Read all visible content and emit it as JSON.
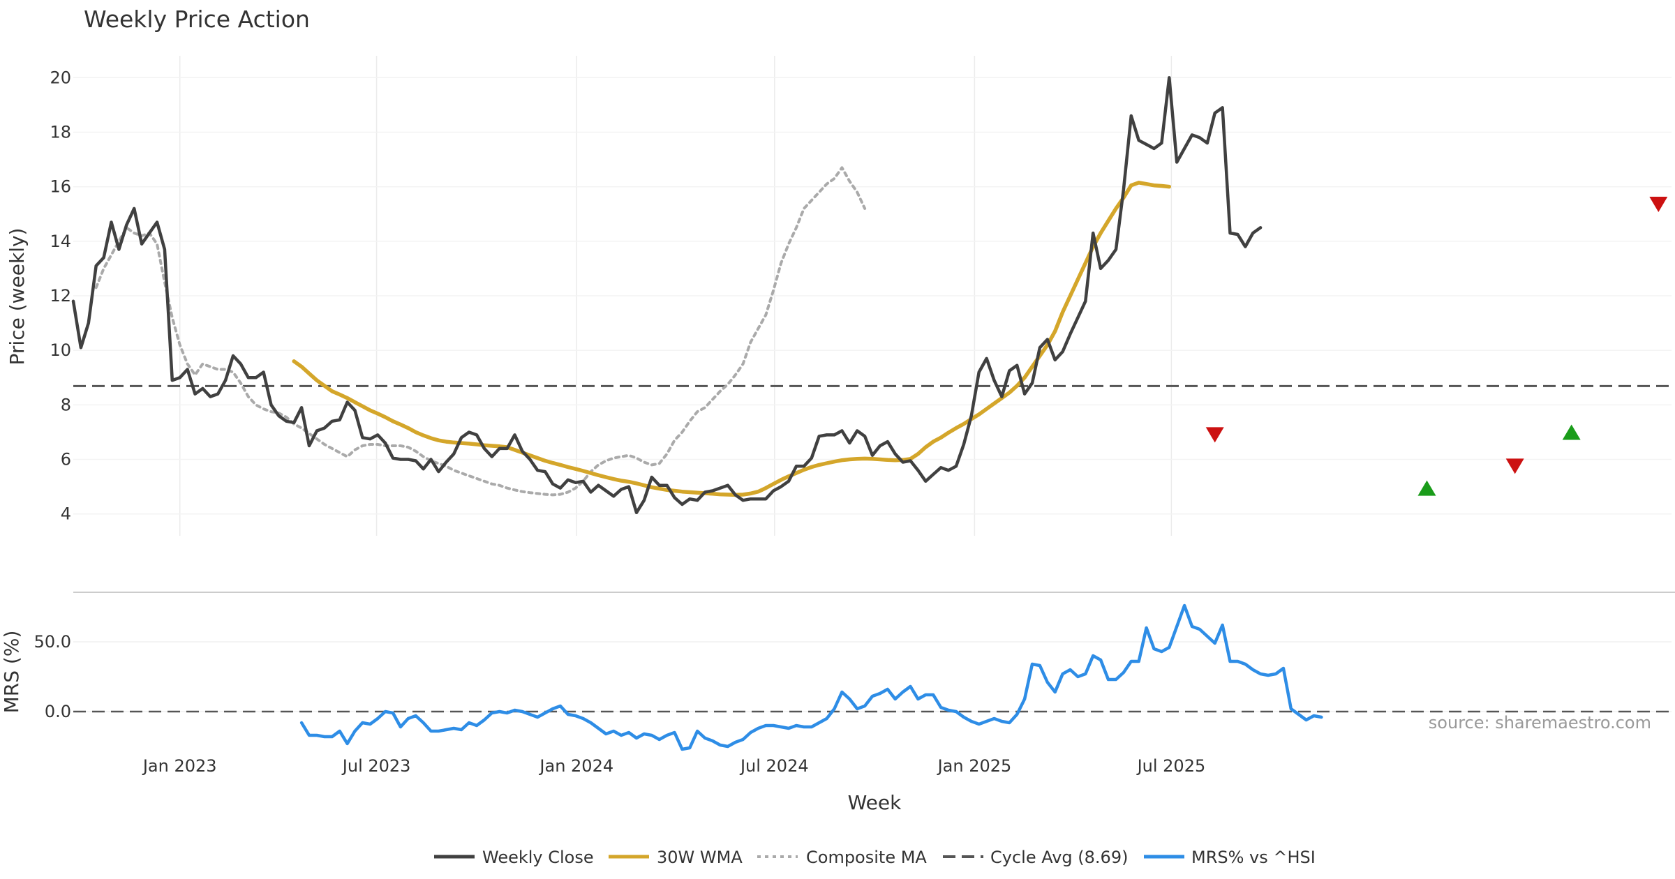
{
  "chart_data": {
    "type": "line",
    "title": "Weekly Price Action",
    "xlabel": "Week",
    "x_ticks": [
      "Jan 2023",
      "Jul 2023",
      "Jan 2024",
      "Jul 2024",
      "Jan 2025",
      "Jul 2025"
    ],
    "x_range_weeks": [
      0,
      1470
    ],
    "price_panel": {
      "ylabel": "Price (weekly)",
      "ylim": [
        3.2,
        20.8
      ],
      "y_ticks": [
        "4",
        "6",
        "8",
        "10",
        "12",
        "14",
        "16",
        "18",
        "20"
      ],
      "cycle_avg": 8.69,
      "series": [
        {
          "name": "Weekly Close",
          "color": "#404040",
          "start": 0,
          "values": [
            11.8,
            10.1,
            11.0,
            13.1,
            13.4,
            14.7,
            13.7,
            14.6,
            15.2,
            13.9,
            14.3,
            14.7,
            13.7,
            8.9,
            9.0,
            9.3,
            8.4,
            8.6,
            8.3,
            8.4,
            8.9,
            9.8,
            9.5,
            9.0,
            9.0,
            9.2,
            8.0,
            7.6,
            7.4,
            7.35,
            7.9,
            6.5,
            7.05,
            7.15,
            7.4,
            7.45,
            8.1,
            7.8,
            6.8,
            6.75,
            6.9,
            6.6,
            6.05,
            6.0,
            6.0,
            5.95,
            5.65,
            6.0,
            5.55,
            5.9,
            6.2,
            6.8,
            7.0,
            6.9,
            6.4,
            6.1,
            6.4,
            6.4,
            6.9,
            6.3,
            6.0,
            5.6,
            5.55,
            5.1,
            4.95,
            5.25,
            5.15,
            5.2,
            4.8,
            5.05,
            4.85,
            4.65,
            4.9,
            5.0,
            4.05,
            4.5,
            5.35,
            5.05,
            5.05,
            4.6,
            4.35,
            4.55,
            4.5,
            4.8,
            4.85,
            4.95,
            5.05,
            4.7,
            4.5,
            4.55,
            4.55,
            4.55,
            4.85,
            5.0,
            5.2,
            5.75,
            5.75,
            6.05,
            6.85,
            6.9,
            6.9,
            7.05,
            6.6,
            7.05,
            6.85,
            6.15,
            6.5,
            6.65,
            6.2,
            5.9,
            5.95,
            5.6,
            5.2,
            5.45,
            5.7,
            5.6,
            5.75,
            6.55,
            7.6,
            9.2,
            9.7,
            8.9,
            8.3,
            9.25,
            9.45,
            8.4,
            8.8,
            10.1,
            10.4,
            9.65,
            9.95,
            10.6,
            11.2,
            11.8,
            14.3,
            13.0,
            13.3,
            13.7,
            15.9,
            18.6,
            17.7,
            17.55,
            17.4,
            17.6,
            20.0,
            16.9,
            17.4,
            17.9,
            17.8,
            17.6,
            18.7,
            18.9,
            14.3,
            14.25,
            13.8,
            14.3,
            14.5
          ]
        },
        {
          "name": "30W WMA",
          "color": "#D4A62A",
          "start": 29,
          "values": [
            9.6,
            9.4,
            9.15,
            8.9,
            8.7,
            8.5,
            8.38,
            8.25,
            8.1,
            7.95,
            7.8,
            7.68,
            7.55,
            7.4,
            7.28,
            7.15,
            7.0,
            6.88,
            6.78,
            6.7,
            6.65,
            6.62,
            6.6,
            6.58,
            6.55,
            6.52,
            6.5,
            6.48,
            6.45,
            6.35,
            6.25,
            6.15,
            6.05,
            5.95,
            5.87,
            5.8,
            5.72,
            5.65,
            5.58,
            5.5,
            5.42,
            5.35,
            5.28,
            5.22,
            5.18,
            5.12,
            5.05,
            4.98,
            4.93,
            4.88,
            4.85,
            4.82,
            4.8,
            4.78,
            4.76,
            4.74,
            4.72,
            4.71,
            4.7,
            4.71,
            4.75,
            4.82,
            4.95,
            5.1,
            5.25,
            5.38,
            5.5,
            5.62,
            5.72,
            5.8,
            5.86,
            5.92,
            5.97,
            6.0,
            6.02,
            6.03,
            6.02,
            6.0,
            5.98,
            5.97,
            5.98,
            6.02,
            6.2,
            6.45,
            6.65,
            6.8,
            6.98,
            7.15,
            7.3,
            7.48,
            7.65,
            7.85,
            8.05,
            8.25,
            8.45,
            8.7,
            9.0,
            9.4,
            9.8,
            10.2,
            10.7,
            11.4,
            12.0,
            12.6,
            13.2,
            13.8,
            14.3,
            14.75,
            15.2,
            15.6,
            16.05,
            16.15,
            16.1,
            16.05,
            16.03,
            16.0
          ]
        },
        {
          "name": "Composite MA",
          "color": "#AAAAAA",
          "start": 3,
          "values": [
            12.3,
            13.0,
            13.5,
            14.0,
            14.5,
            14.3,
            14.2,
            14.3,
            13.9,
            12.5,
            11.2,
            10.2,
            9.5,
            9.1,
            9.5,
            9.4,
            9.3,
            9.3,
            9.2,
            8.8,
            8.3,
            8.0,
            7.85,
            7.75,
            7.7,
            7.55,
            7.3,
            7.15,
            6.95,
            6.75,
            6.55,
            6.4,
            6.25,
            6.1,
            6.35,
            6.5,
            6.55,
            6.55,
            6.5,
            6.5,
            6.5,
            6.45,
            6.3,
            6.1,
            5.95,
            5.85,
            5.75,
            5.6,
            5.5,
            5.4,
            5.3,
            5.2,
            5.1,
            5.05,
            4.95,
            4.88,
            4.82,
            4.78,
            4.75,
            4.72,
            4.7,
            4.72,
            4.8,
            4.95,
            5.2,
            5.55,
            5.8,
            5.95,
            6.05,
            6.1,
            6.15,
            6.05,
            5.9,
            5.8,
            5.85,
            6.2,
            6.7,
            7.0,
            7.4,
            7.75,
            7.9,
            8.2,
            8.5,
            8.75,
            9.1,
            9.5,
            10.3,
            10.8,
            11.3,
            12.2,
            13.2,
            13.9,
            14.5,
            15.2,
            15.5,
            15.8,
            16.1,
            16.3,
            16.7,
            16.2,
            15.8,
            15.2
          ]
        }
      ],
      "buy_signals": [
        {
          "x": 1245,
          "y": 4.95
        },
        {
          "x": 1378,
          "y": 7.0
        }
      ],
      "sell_signals": [
        {
          "x": 1050,
          "y": 6.9
        },
        {
          "x": 1326,
          "y": 5.75
        },
        {
          "x": 1458,
          "y": 15.35
        }
      ]
    },
    "mrs_panel": {
      "ylabel": "MRS (%)",
      "ylim": [
        -30,
        80
      ],
      "y_ticks": [
        "0.0",
        "50.0"
      ],
      "series": [
        {
          "name": "MRS% vs ^HSI",
          "color": "#2E8DE6",
          "start": 30,
          "values": [
            -8,
            -17,
            -17,
            -18,
            -18,
            -14,
            -23,
            -14,
            -8,
            -9,
            -5,
            0,
            -1,
            -11,
            -5,
            -3,
            -8,
            -14,
            -14,
            -13,
            -12,
            -13,
            -8,
            -10,
            -6,
            -1,
            0,
            -1,
            1,
            0,
            -2,
            -4,
            -1,
            2,
            4,
            -2,
            -3,
            -5,
            -8,
            -12,
            -16,
            -14,
            -17,
            -15,
            -19,
            -16,
            -17,
            -20,
            -17,
            -15,
            -27,
            -26,
            -14,
            -19,
            -21,
            -24,
            -25,
            -22,
            -20,
            -15,
            -12,
            -10,
            -10,
            -11,
            -12,
            -10,
            -11,
            -11,
            -8,
            -5,
            2,
            14,
            9,
            2,
            4,
            11,
            13,
            16,
            9,
            14,
            18,
            9,
            12,
            12,
            3,
            1,
            0,
            -4,
            -7,
            -9,
            -7,
            -5,
            -7,
            -8,
            -2,
            9,
            34,
            33,
            21,
            14,
            27,
            30,
            25,
            27,
            40,
            37,
            23,
            23,
            28,
            36,
            36,
            60,
            45,
            43,
            46,
            61,
            76,
            61,
            59,
            54,
            49,
            62,
            36,
            36,
            34,
            30,
            27,
            26,
            27,
            31,
            2,
            -2,
            -6,
            -3,
            -4
          ]
        }
      ]
    },
    "legend": [
      "Weekly Close",
      "30W WMA",
      "Composite MA",
      "Cycle Avg (8.69)",
      "MRS% vs ^HSI"
    ],
    "source_text": "source: sharemaestro.com"
  }
}
